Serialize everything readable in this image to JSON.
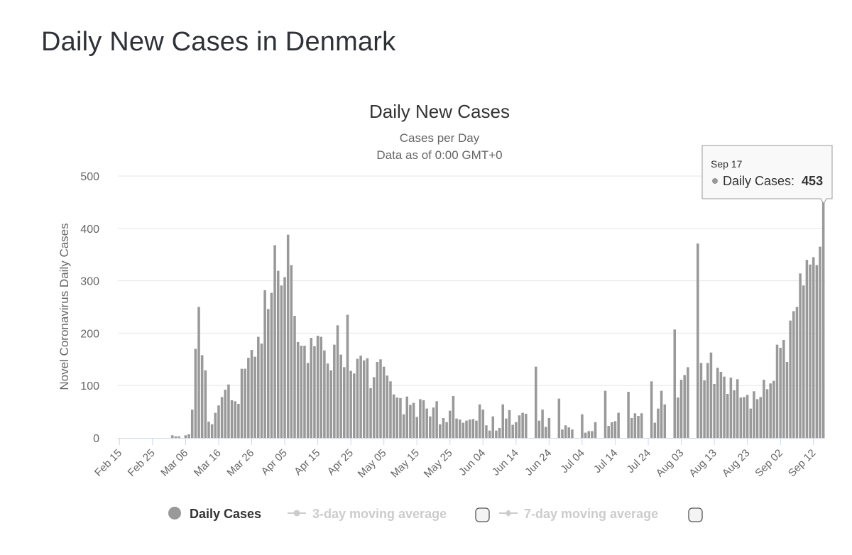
{
  "page": {
    "title": "Daily New Cases in Denmark"
  },
  "chart_data": {
    "type": "bar",
    "title": "Daily New Cases",
    "subtitle_1": "Cases per Day",
    "subtitle_2": "Data as of 0:00 GMT+0",
    "ylabel": "Novel Coronavirus Daily Cases",
    "xlabel": "",
    "ylim": [
      0,
      500
    ],
    "yticks": [
      0,
      100,
      200,
      300,
      400,
      500
    ],
    "grid": true,
    "start_date": "Feb 15",
    "end_date": "Sep 17",
    "xtick_labels": [
      "Feb 15",
      "Feb 25",
      "Mar 06",
      "Mar 16",
      "Mar 26",
      "Apr 05",
      "Apr 15",
      "Apr 25",
      "May 05",
      "May 15",
      "May 25",
      "Jun 04",
      "Jun 14",
      "Jun 24",
      "Jul 04",
      "Jul 14",
      "Jul 24",
      "Aug 03",
      "Aug 13",
      "Aug 23",
      "Sep 02",
      "Sep 12"
    ],
    "bar_color": "#999999",
    "series": [
      {
        "name": "Daily Cases",
        "values": [
          0,
          0,
          0,
          0,
          0,
          0,
          0,
          0,
          0,
          0,
          0,
          0,
          0,
          0,
          0,
          0,
          5,
          3,
          3,
          0,
          5,
          7,
          54,
          170,
          250,
          158,
          129,
          31,
          26,
          48,
          62,
          78,
          92,
          102,
          72,
          70,
          65,
          132,
          132,
          153,
          168,
          155,
          193,
          180,
          282,
          246,
          277,
          368,
          319,
          291,
          307,
          388,
          330,
          233,
          183,
          176,
          176,
          143,
          191,
          175,
          195,
          193,
          167,
          142,
          129,
          178,
          215,
          159,
          135,
          235,
          128,
          123,
          151,
          157,
          148,
          152,
          95,
          116,
          145,
          150,
          136,
          119,
          108,
          83,
          77,
          76,
          45,
          79,
          63,
          67,
          40,
          74,
          72,
          56,
          41,
          58,
          70,
          26,
          38,
          30,
          52,
          80,
          37,
          35,
          29,
          33,
          35,
          36,
          33,
          64,
          54,
          24,
          14,
          41,
          14,
          19,
          64,
          37,
          53,
          25,
          30,
          43,
          48,
          46,
          0,
          0,
          136,
          33,
          54,
          21,
          38,
          0,
          0,
          75,
          16,
          24,
          20,
          16,
          0,
          0,
          45,
          10,
          13,
          13,
          30,
          0,
          0,
          90,
          23,
          30,
          32,
          48,
          0,
          0,
          88,
          38,
          47,
          42,
          47,
          0,
          0,
          108,
          29,
          56,
          90,
          64,
          0,
          0,
          207,
          77,
          111,
          120,
          135,
          0,
          0,
          371,
          143,
          110,
          143,
          163,
          103,
          134,
          126,
          117,
          84,
          115,
          91,
          112,
          77,
          78,
          82,
          56,
          89,
          74,
          78,
          111,
          93,
          104,
          109,
          178,
          172,
          187,
          145,
          224,
          242,
          250,
          314,
          291,
          340,
          331,
          345,
          330,
          365,
          453
        ]
      }
    ],
    "legend": [
      {
        "label": "Daily Cases",
        "active": true,
        "color": "#999999"
      },
      {
        "label": "3-day moving average",
        "active": false,
        "color": "#cccccc"
      },
      {
        "label": "7-day moving average",
        "active": false,
        "color": "#cccccc"
      }
    ],
    "legend_position": "bottom",
    "tooltip": {
      "date": "Sep 17",
      "series_label": "Daily Cases:",
      "value": "453"
    }
  }
}
